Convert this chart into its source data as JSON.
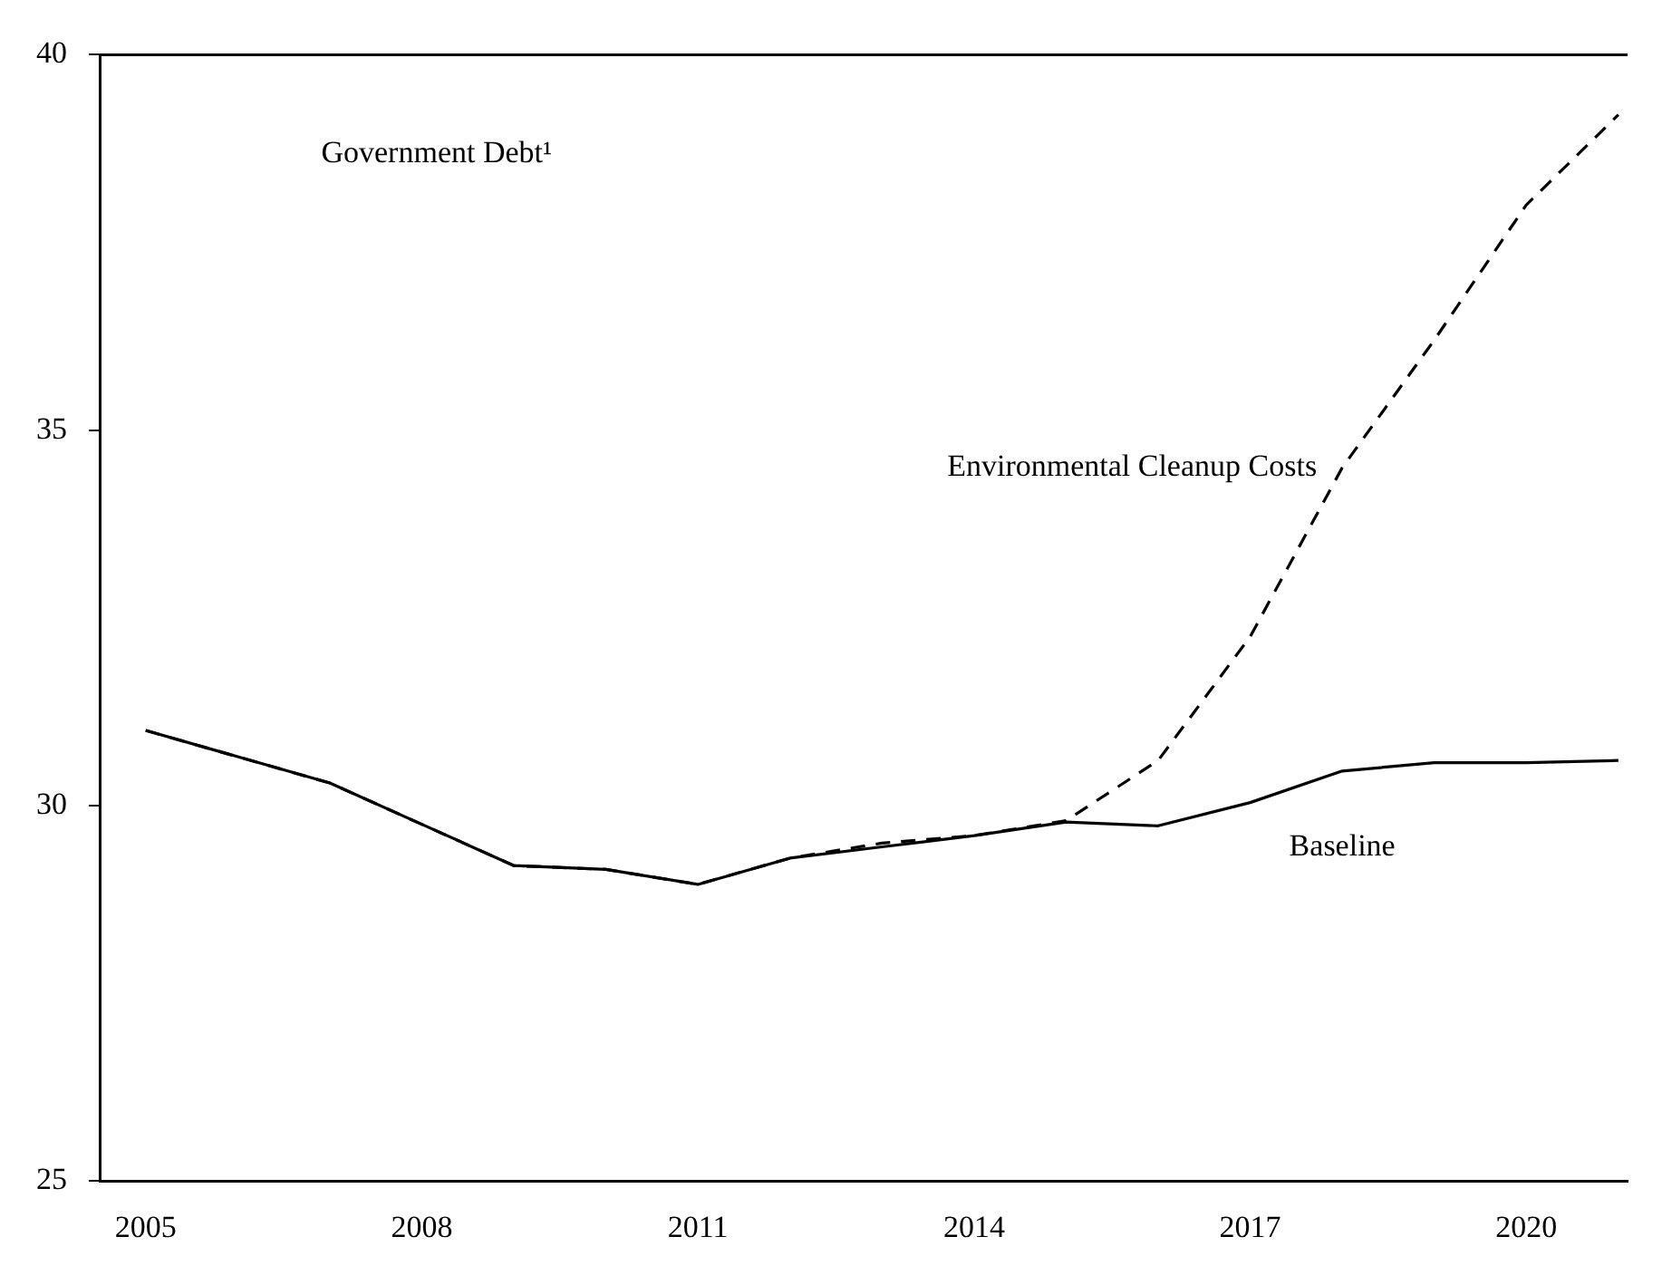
{
  "chart_data": {
    "type": "line",
    "title": "Government Debt¹",
    "x": [
      2005,
      2006,
      2007,
      2008,
      2009,
      2010,
      2011,
      2012,
      2013,
      2014,
      2015,
      2016,
      2017,
      2018,
      2019,
      2020,
      2021
    ],
    "series": [
      {
        "name": "Baseline",
        "color": "#000000",
        "line_style": "solid",
        "values": [
          31.0,
          30.65,
          30.3,
          29.75,
          29.2,
          29.15,
          28.95,
          29.3,
          29.45,
          29.6,
          29.78,
          29.73,
          30.04,
          30.46,
          30.57,
          30.57,
          30.6
        ]
      },
      {
        "name": "Environmental Cleanup Costs",
        "color": "#000000",
        "line_style": "dashed",
        "values": [
          31.0,
          30.65,
          30.3,
          29.75,
          29.2,
          29.15,
          28.95,
          29.3,
          29.5,
          29.6,
          29.8,
          30.6,
          32.25,
          34.5,
          36.2,
          38.0,
          39.2
        ]
      }
    ],
    "xlim": [
      2004.5,
      2021.1
    ],
    "xticks": [
      2005,
      2008,
      2011,
      2014,
      2017,
      2020
    ],
    "ylim": [
      25,
      40
    ],
    "yticks": [
      25,
      30,
      35,
      40
    ],
    "grid": false,
    "legend": false,
    "marker": "none"
  }
}
